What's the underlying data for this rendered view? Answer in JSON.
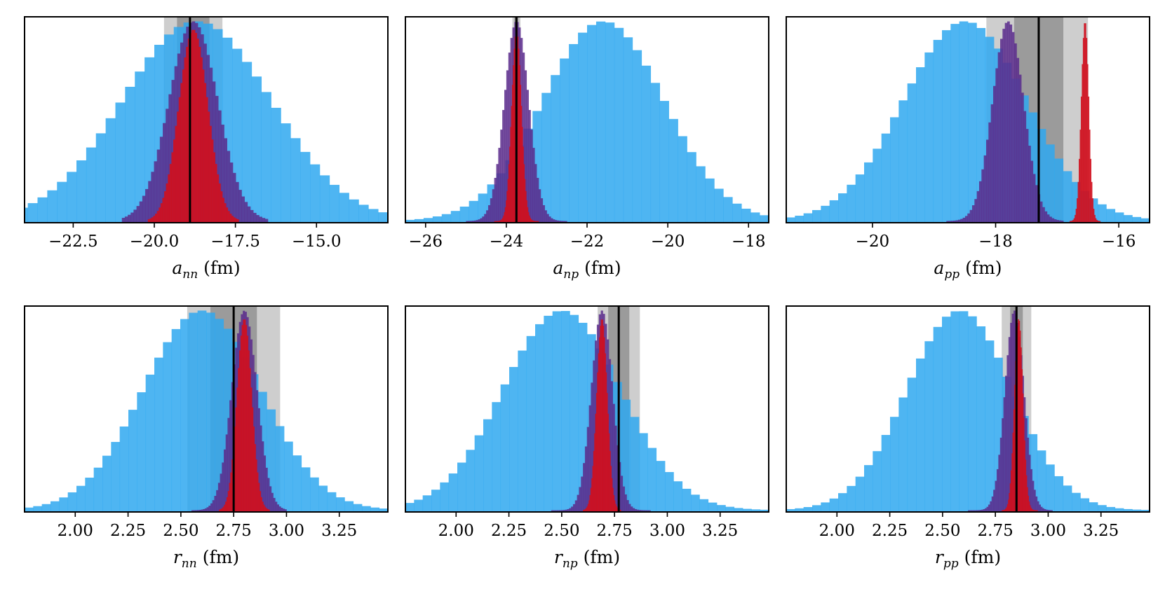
{
  "colors": {
    "wide": "#2fa8f0",
    "medium": "#5a2b8c",
    "narrow": "#d0101e",
    "band_outer": "#b4b4b4",
    "band_inner": "#7a7a7a",
    "ref_line": "#000000"
  },
  "chart_data": [
    {
      "type": "histogram",
      "name": "a_nn",
      "xlabel": {
        "var": "a",
        "sub": "nn",
        "unit": "(fm)"
      },
      "xlim": [
        -24.0,
        -12.8
      ],
      "xticks": [
        -22.5,
        -20.0,
        -17.5,
        -15.0
      ],
      "xtick_labels": [
        "−22.5",
        "−20.0",
        "−17.5",
        "−15.0"
      ],
      "reference": -18.9,
      "band_inner": [
        -19.3,
        -18.3
      ],
      "band_outer": [
        -19.7,
        -17.9
      ],
      "series": [
        {
          "name": "wide",
          "mean": -18.7,
          "sd": 2.3,
          "nbins": 40,
          "range": [
            -24.5,
            -12.5
          ],
          "peak": 0.97,
          "alpha": 0.85
        },
        {
          "name": "medium",
          "mean": -18.8,
          "sd": 0.75,
          "nbins": 50,
          "range": [
            -21.0,
            -16.5
          ],
          "peak": 0.97,
          "alpha": 0.85
        },
        {
          "name": "narrow",
          "mean": -18.8,
          "sd": 0.45,
          "nbins": 50,
          "range": [
            -20.2,
            -17.4
          ],
          "peak": 0.93,
          "alpha": 0.9
        }
      ]
    },
    {
      "type": "histogram",
      "name": "a_np",
      "xlabel": {
        "var": "a",
        "sub": "np",
        "unit": "(fm)"
      },
      "xlim": [
        -26.5,
        -17.5
      ],
      "xticks": [
        -26,
        -24,
        -22,
        -20,
        -18
      ],
      "xtick_labels": [
        "−26",
        "−24",
        "−22",
        "−20",
        "−18"
      ],
      "reference": -23.75,
      "band_inner": [
        -23.8,
        -23.7
      ],
      "band_outer": [
        -23.85,
        -23.65
      ],
      "series": [
        {
          "name": "wide",
          "mean": -21.6,
          "sd": 1.5,
          "nbins": 40,
          "range": [
            -26.5,
            -17.5
          ],
          "peak": 0.97,
          "alpha": 0.85
        },
        {
          "name": "medium",
          "mean": -23.75,
          "sd": 0.3,
          "nbins": 50,
          "range": [
            -25.0,
            -22.5
          ],
          "peak": 0.97,
          "alpha": 0.85
        },
        {
          "name": "narrow",
          "mean": -23.75,
          "sd": 0.12,
          "nbins": 50,
          "range": [
            -24.3,
            -23.2
          ],
          "peak": 0.93,
          "alpha": 0.9
        }
      ]
    },
    {
      "type": "histogram",
      "name": "a_pp",
      "xlabel": {
        "var": "a",
        "sub": "pp",
        "unit": "(fm)"
      },
      "xlim": [
        -21.4,
        -15.5
      ],
      "xticks": [
        -20,
        -18,
        -16
      ],
      "xtick_labels": [
        "−20",
        "−18",
        "−16"
      ],
      "reference": -17.3,
      "band_inner": [
        -17.7,
        -16.9
      ],
      "band_outer": [
        -18.15,
        -16.5
      ],
      "series": [
        {
          "name": "wide",
          "mean": -18.5,
          "sd": 1.0,
          "nbins": 42,
          "range": [
            -21.4,
            -15.5
          ],
          "peak": 0.97,
          "alpha": 0.85
        },
        {
          "name": "medium",
          "mean": -17.8,
          "sd": 0.25,
          "nbins": 50,
          "range": [
            -18.8,
            -16.9
          ],
          "peak": 0.97,
          "alpha": 0.85
        },
        {
          "name": "narrow",
          "mean": -16.55,
          "sd": 0.06,
          "nbins": 30,
          "range": [
            -16.8,
            -16.3
          ],
          "peak": 0.97,
          "alpha": 0.9
        }
      ]
    },
    {
      "type": "histogram",
      "name": "r_nn",
      "xlabel": {
        "var": "r",
        "sub": "nn",
        "unit": "(fm)"
      },
      "xlim": [
        1.76,
        3.48
      ],
      "xticks": [
        2.0,
        2.25,
        2.5,
        2.75,
        3.0,
        3.25
      ],
      "xtick_labels": [
        "2.00",
        "2.25",
        "2.50",
        "2.75",
        "3.00",
        "3.25"
      ],
      "reference": 2.75,
      "band_inner": [
        2.64,
        2.86
      ],
      "band_outer": [
        2.53,
        2.97
      ],
      "series": [
        {
          "name": "wide",
          "mean": 2.6,
          "sd": 0.28,
          "nbins": 42,
          "range": [
            1.76,
            3.48
          ],
          "peak": 0.97,
          "alpha": 0.85
        },
        {
          "name": "medium",
          "mean": 2.8,
          "sd": 0.06,
          "nbins": 50,
          "range": [
            2.55,
            3.0
          ],
          "peak": 0.97,
          "alpha": 0.85
        },
        {
          "name": "narrow",
          "mean": 2.8,
          "sd": 0.035,
          "nbins": 40,
          "range": [
            2.68,
            2.92
          ],
          "peak": 0.93,
          "alpha": 0.9
        }
      ]
    },
    {
      "type": "histogram",
      "name": "r_np",
      "xlabel": {
        "var": "r",
        "sub": "np",
        "unit": "(fm)"
      },
      "xlim": [
        1.76,
        3.48
      ],
      "xticks": [
        2.0,
        2.25,
        2.5,
        2.75,
        3.0,
        3.25
      ],
      "xtick_labels": [
        "2.00",
        "2.25",
        "2.50",
        "2.75",
        "3.00",
        "3.25"
      ],
      "reference": 2.77,
      "band_inner": [
        2.72,
        2.82
      ],
      "band_outer": [
        2.67,
        2.87
      ],
      "series": [
        {
          "name": "wide",
          "mean": 2.5,
          "sd": 0.28,
          "nbins": 42,
          "range": [
            1.76,
            3.48
          ],
          "peak": 0.97,
          "alpha": 0.85
        },
        {
          "name": "medium",
          "mean": 2.69,
          "sd": 0.05,
          "nbins": 50,
          "range": [
            2.45,
            2.92
          ],
          "peak": 0.97,
          "alpha": 0.85
        },
        {
          "name": "narrow",
          "mean": 2.69,
          "sd": 0.025,
          "nbins": 40,
          "range": [
            2.6,
            2.78
          ],
          "peak": 0.93,
          "alpha": 0.9
        }
      ]
    },
    {
      "type": "histogram",
      "name": "r_pp",
      "xlabel": {
        "var": "r",
        "sub": "pp",
        "unit": "(fm)"
      },
      "xlim": [
        1.76,
        3.48
      ],
      "xticks": [
        2.0,
        2.25,
        2.5,
        2.75,
        3.0,
        3.25
      ],
      "xtick_labels": [
        "2.00",
        "2.25",
        "2.50",
        "2.75",
        "3.00",
        "3.25"
      ],
      "reference": 2.85,
      "band_inner": [
        2.82,
        2.88
      ],
      "band_outer": [
        2.78,
        2.92
      ],
      "series": [
        {
          "name": "wide",
          "mean": 2.58,
          "sd": 0.25,
          "nbins": 42,
          "range": [
            1.76,
            3.48
          ],
          "peak": 0.97,
          "alpha": 0.85
        },
        {
          "name": "medium",
          "mean": 2.84,
          "sd": 0.045,
          "nbins": 50,
          "range": [
            2.62,
            3.02
          ],
          "peak": 0.97,
          "alpha": 0.85
        },
        {
          "name": "narrow",
          "mean": 2.86,
          "sd": 0.02,
          "nbins": 40,
          "range": [
            2.78,
            2.95
          ],
          "peak": 0.93,
          "alpha": 0.9
        }
      ]
    }
  ]
}
